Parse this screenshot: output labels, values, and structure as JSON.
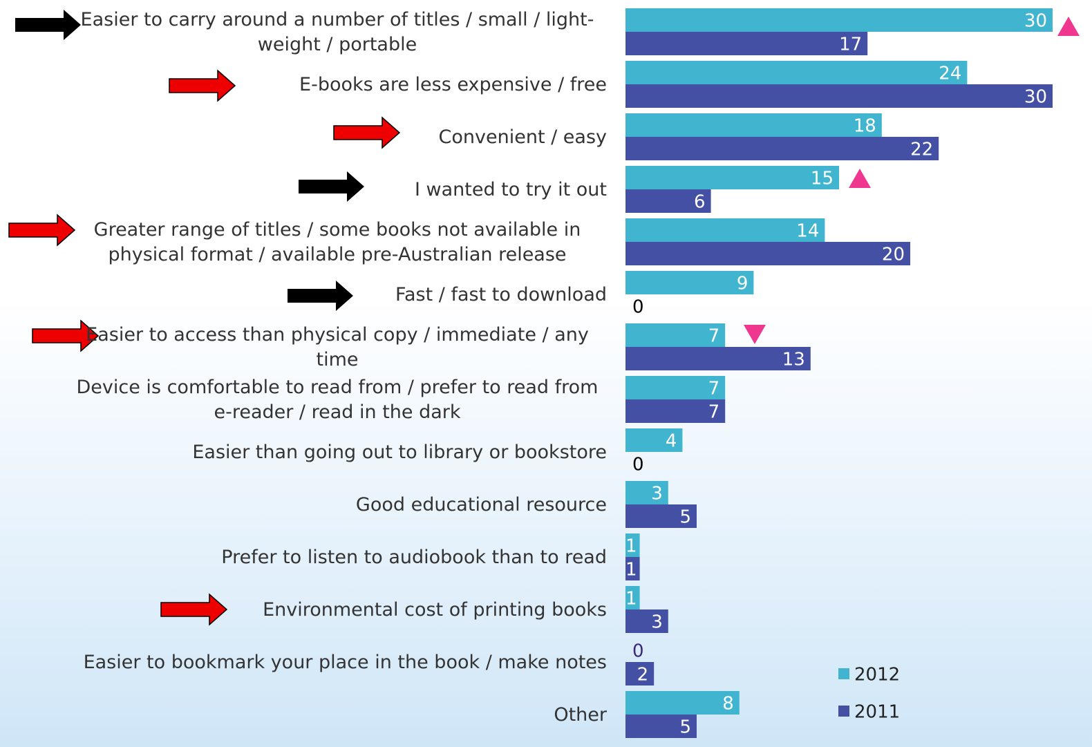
{
  "chart_data": {
    "type": "bar",
    "orientation": "horizontal",
    "categories": [
      "Easier to carry around a number of titles / small / light-weight / portable",
      "E-books are less expensive / free",
      "Convenient / easy",
      "I wanted to try it out",
      "Greater range of titles / some books not available in physical format / available pre-Australian release",
      "Fast / fast to download",
      "Easier to access than physical copy / immediate / any time",
      "Device is comfortable to read from / prefer to read from e-reader / read in the dark",
      "Easier than going out to library or bookstore",
      "Good educational resource",
      "Prefer to listen to audiobook than to read",
      "Environmental cost of printing books",
      "Easier to bookmark your place in the book / make notes",
      "Other"
    ],
    "series": [
      {
        "name": "2012",
        "color": "#41b4cf",
        "values": [
          30,
          24,
          18,
          15,
          14,
          9,
          7,
          7,
          4,
          3,
          1,
          1,
          0,
          8
        ]
      },
      {
        "name": "2011",
        "color": "#4350a3",
        "values": [
          17,
          30,
          22,
          6,
          20,
          0,
          13,
          7,
          0,
          5,
          1,
          3,
          2,
          5
        ]
      }
    ],
    "legend": "bottom-right"
  }
}
